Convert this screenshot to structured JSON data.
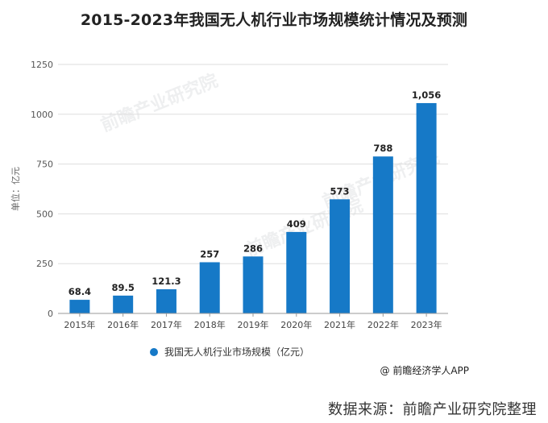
{
  "title": "2015-2023年我国无人机行业市场规模统计情况及预测",
  "legend_label": "我国无人机行业市场规模（亿元）",
  "handle": "@ 前瞻经济学人APP",
  "source": "数据来源：前瞻产业研究院整理",
  "watermark": "前瞻产业研究院",
  "colors": {
    "bar": "#1679C7"
  },
  "chart_data": {
    "type": "bar",
    "title": "2015-2023年我国无人机行业市场规模统计情况及预测",
    "ylabel": "单位：亿元",
    "xlabel": "",
    "categories": [
      "2015年",
      "2016年",
      "2017年",
      "2018年",
      "2019年",
      "2020年",
      "2021年",
      "2022年",
      "2023年"
    ],
    "values": [
      68.4,
      89.5,
      121.3,
      257,
      286,
      409,
      573,
      788,
      1056
    ],
    "value_labels": [
      "68.4",
      "89.5",
      "121.3",
      "257",
      "286",
      "409",
      "573",
      "788",
      "1,056"
    ],
    "ylim": [
      0,
      1250
    ],
    "yticks": [
      0,
      250,
      500,
      750,
      1000,
      1250
    ],
    "ytick_labels": [
      "0",
      "250",
      "500",
      "750",
      "1000",
      "1250"
    ],
    "grid": true,
    "legend": "bottom-center",
    "series": [
      {
        "name": "我国无人机行业市场规模（亿元）",
        "values": [
          68.4,
          89.5,
          121.3,
          257,
          286,
          409,
          573,
          788,
          1056
        ]
      }
    ]
  }
}
